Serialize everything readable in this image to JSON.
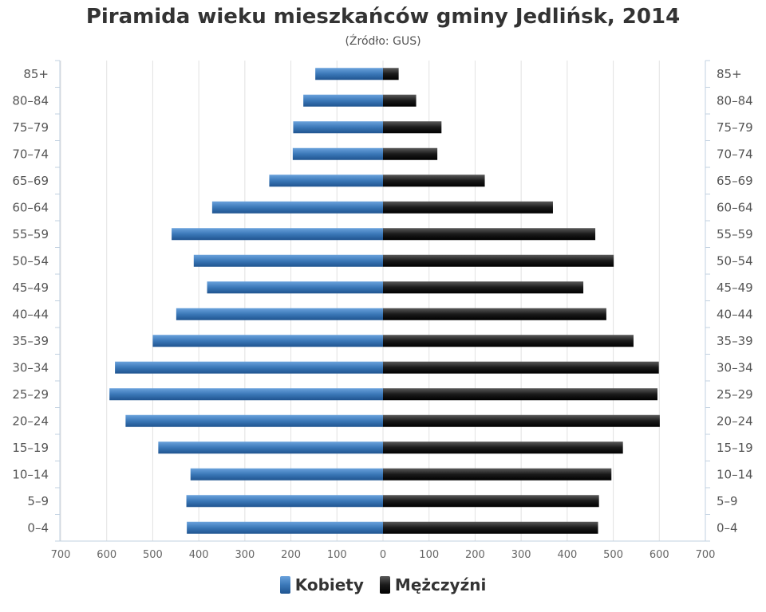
{
  "chart_data": {
    "type": "bar",
    "orientation": "horizontal-pyramid",
    "title": "Piramida wieku mieszkańców gminy Jedlińsk, 2014",
    "subtitle": "(Źródło: GUS)",
    "categories": [
      "85+",
      "80–84",
      "75–79",
      "70–74",
      "65–69",
      "60–64",
      "55–59",
      "50–54",
      "45–49",
      "40–44",
      "35–39",
      "30–34",
      "25–29",
      "20–24",
      "15–19",
      "10–14",
      "5–9",
      "0–4"
    ],
    "series": [
      {
        "name": "Kobiety",
        "color": "#3b78b8",
        "values": [
          147,
          173,
          195,
          196,
          247,
          371,
          459,
          411,
          382,
          449,
          500,
          582,
          594,
          559,
          488,
          418,
          427,
          426
        ]
      },
      {
        "name": "Mężczyźni",
        "color": "#1a1a1a",
        "values": [
          34,
          72,
          127,
          118,
          221,
          369,
          461,
          501,
          435,
          485,
          544,
          599,
          596,
          601,
          521,
          496,
          469,
          467
        ]
      }
    ],
    "xlim": [
      -700,
      700
    ],
    "xticks": [
      "700",
      "600",
      "500",
      "400",
      "300",
      "200",
      "100",
      "0",
      "100",
      "200",
      "300",
      "400",
      "500",
      "600",
      "700"
    ],
    "grid": true,
    "legend_position": "bottom-center"
  }
}
